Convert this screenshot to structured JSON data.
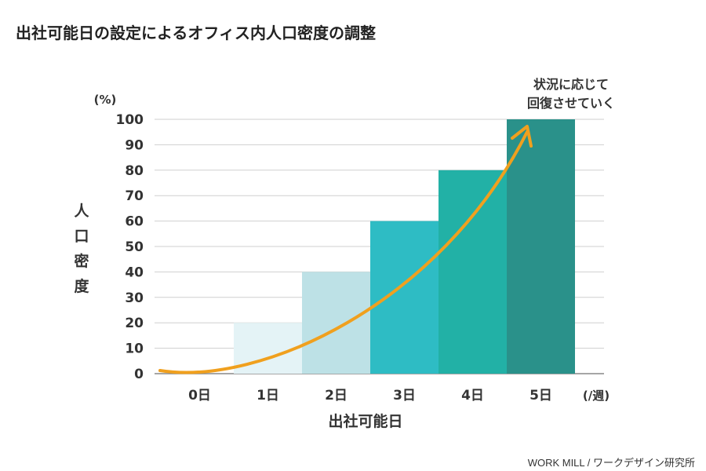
{
  "title": "出社可能日の設定によるオフィス内人口密度の調整",
  "credit": "WORK MILL / ワークデザイン研究所",
  "chart_data": {
    "type": "bar",
    "categories": [
      "0日",
      "1日",
      "2日",
      "3日",
      "4日",
      "5日"
    ],
    "values": [
      0,
      20,
      40,
      60,
      80,
      100
    ],
    "bar_colors": [
      "#e4f3f6",
      "#e4f3f6",
      "#bde1e6",
      "#2ebcc4",
      "#22b1a6",
      "#2a918a"
    ],
    "xlabel": "出社可能日",
    "x_unit": "(/週)",
    "ylabel": "人口密度",
    "y_unit": "(%)",
    "ylim": [
      0,
      100
    ],
    "yticks": [
      "0",
      "10",
      "20",
      "30",
      "40",
      "50",
      "60",
      "70",
      "80",
      "90",
      "100"
    ],
    "grid": true,
    "trend_arrow_color": "#f0a01e",
    "annotation": [
      "状況に応じて",
      "回復させていく"
    ]
  }
}
